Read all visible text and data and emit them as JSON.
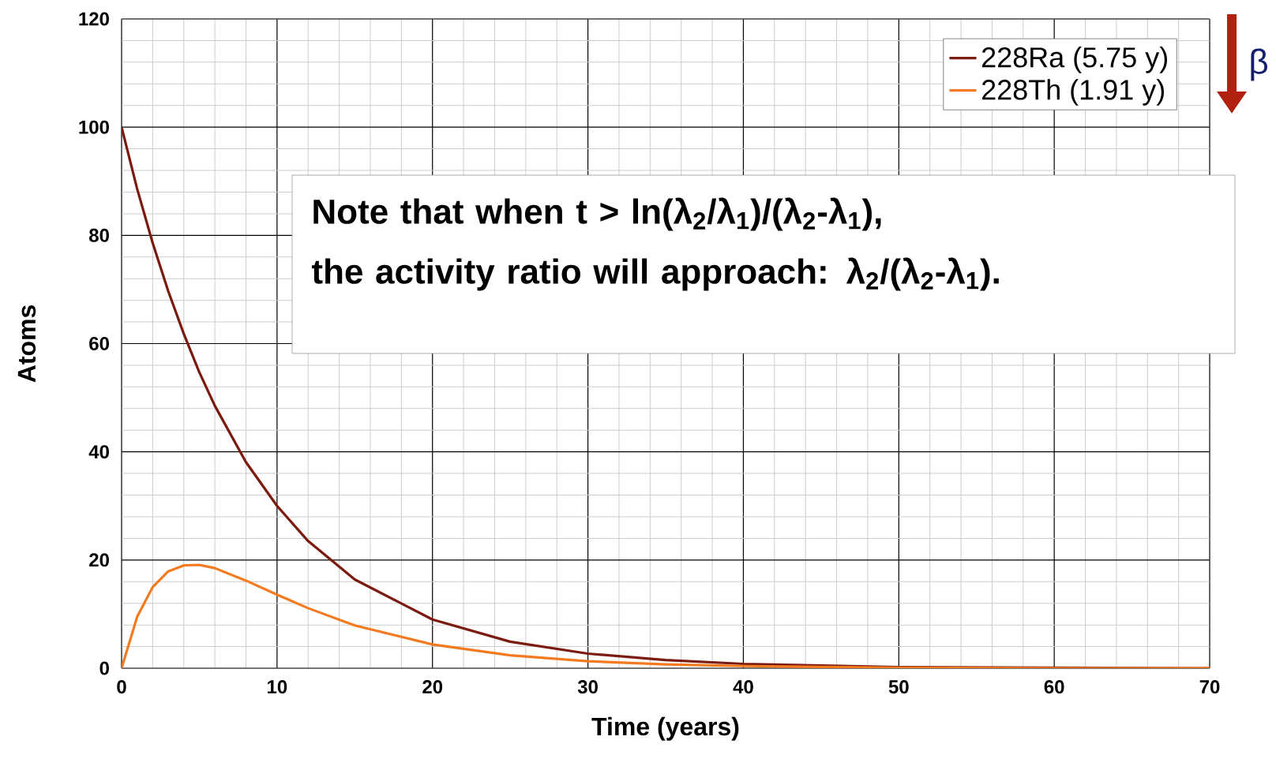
{
  "chart_data": {
    "type": "line",
    "xlabel": "Time (years)",
    "ylabel": "Atoms",
    "x": [
      0,
      1,
      2,
      3,
      4,
      5,
      6,
      8,
      10,
      12,
      15,
      20,
      25,
      30,
      35,
      40,
      50,
      60,
      70
    ],
    "series": [
      {
        "name": "228Ra (5.75 y)",
        "color": "#7b1a0f",
        "values": [
          100,
          88.6,
          78.6,
          69.7,
          61.8,
          54.7,
          48.5,
          38.1,
          30.0,
          23.5,
          16.4,
          9.0,
          4.9,
          2.7,
          1.5,
          0.8,
          0.2,
          0.1,
          0
        ]
      },
      {
        "name": "228Th (1.91 y)",
        "color": "#f47a20",
        "values": [
          0,
          9.5,
          15.0,
          17.9,
          19.0,
          19.1,
          18.5,
          16.2,
          13.6,
          11.1,
          7.9,
          4.4,
          2.4,
          1.3,
          0.7,
          0.4,
          0.1,
          0,
          0
        ]
      }
    ],
    "xlim": [
      0,
      70
    ],
    "ylim": [
      0,
      120
    ],
    "xticks": [
      0,
      10,
      20,
      30,
      40,
      50,
      60,
      70
    ],
    "yticks": [
      0,
      20,
      40,
      60,
      80,
      100,
      120
    ],
    "grid": true,
    "legend": "top right",
    "marker": "none",
    "line_style": "solid",
    "annotations": [
      "Note that when t > ln(λ$_{2}$/λ$_{1}$)/(λ$_{2}$-λ$_{1}$),",
      "the activity ratio will approach: λ$_{2}$/(λ$_{2}$-λ$_{1}$).",
      "β"
    ]
  }
}
